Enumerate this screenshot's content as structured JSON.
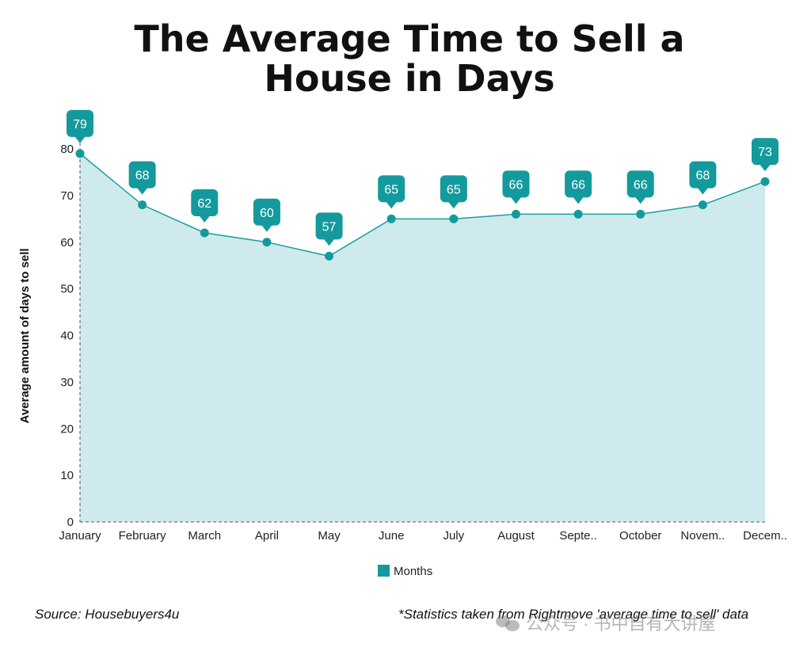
{
  "title_line1": "The Average Time to Sell a",
  "title_line2": "House in Days",
  "footer": {
    "source": "Source: Housebuyers4u",
    "note": "*Statistics taken from Rightmove 'average time to sell' data"
  },
  "watermark": {
    "text": "公众号 · 书中自有大讲屋",
    "icon": "wechat-icon"
  },
  "colors": {
    "line": "#1a9ea0",
    "fill": "#cfeaec",
    "marker": "#149a9c",
    "label_bg": "#149a9c"
  },
  "chart_data": {
    "type": "area",
    "categories": [
      "January",
      "February",
      "March",
      "April",
      "May",
      "June",
      "July",
      "August",
      "Septe..",
      "October",
      "Novem..",
      "Decem.."
    ],
    "series": [
      {
        "name": "Months",
        "values": [
          79,
          68,
          62,
          60,
          57,
          65,
          65,
          66,
          66,
          66,
          68,
          73
        ]
      }
    ],
    "ylabel": "Average amount of days to sell",
    "xlabel": "",
    "ylim": [
      0,
      80
    ],
    "yticks": [
      0,
      10,
      20,
      30,
      40,
      50,
      60,
      70,
      80
    ],
    "grid": false,
    "legend": "bottom",
    "data_labels": true
  }
}
